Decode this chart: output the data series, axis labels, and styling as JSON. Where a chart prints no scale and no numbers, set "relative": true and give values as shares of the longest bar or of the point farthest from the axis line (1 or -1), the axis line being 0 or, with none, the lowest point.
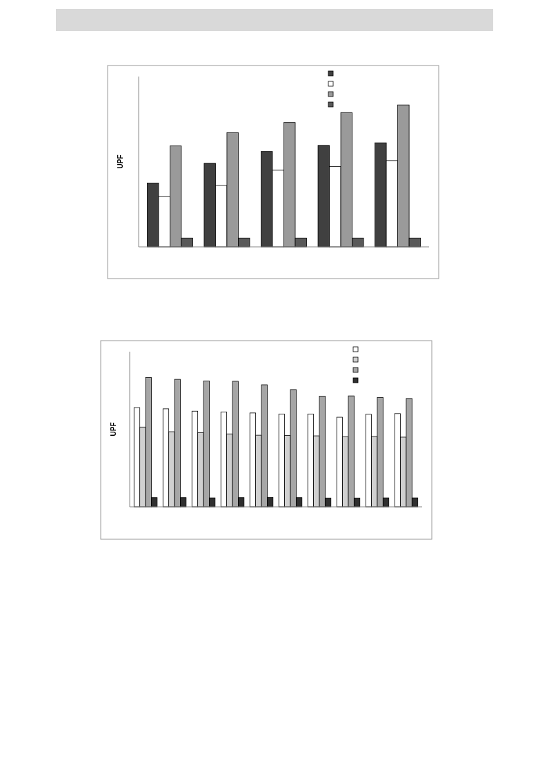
{
  "chart_data": [
    {
      "type": "bar",
      "ylabel": "UPF",
      "relative": true,
      "categories": [
        null,
        null,
        null,
        null,
        null
      ],
      "series": [
        {
          "color": "#404040",
          "values": [
            0.45,
            0.589,
            0.672,
            0.715,
            0.733
          ]
        },
        {
          "color": "#ffffff",
          "values": [
            0.356,
            0.433,
            0.54,
            0.566,
            0.608
          ]
        },
        {
          "color": "#9a9a9a",
          "values": [
            0.711,
            0.805,
            0.876,
            0.946,
            1
          ]
        },
        {
          "color": "#595959",
          "values": [
            0.062,
            0.062,
            0.062,
            0.062,
            0.062
          ]
        }
      ]
    },
    {
      "type": "bar",
      "ylabel": "UPF",
      "relative": true,
      "categories": [
        null,
        null,
        null,
        null,
        null,
        null,
        null,
        null,
        null,
        null
      ],
      "series": [
        {
          "color": "#ffffff",
          "values": [
            0.767,
            0.758,
            0.74,
            0.733,
            0.726,
            0.718,
            0.718,
            0.693,
            0.716,
            0.721
          ]
        },
        {
          "color": "#d0d0d0",
          "values": [
            0.617,
            0.581,
            0.574,
            0.564,
            0.554,
            0.552,
            0.549,
            0.541,
            0.544,
            0.539
          ]
        },
        {
          "color": "#a6a6a6",
          "values": [
            1,
            0.986,
            0.973,
            0.971,
            0.944,
            0.907,
            0.856,
            0.858,
            0.845,
            0.838
          ]
        },
        {
          "color": "#303030",
          "values": [
            0.071,
            0.071,
            0.069,
            0.071,
            0.073,
            0.071,
            0.068,
            0.068,
            0.069,
            0.069
          ]
        }
      ]
    }
  ]
}
